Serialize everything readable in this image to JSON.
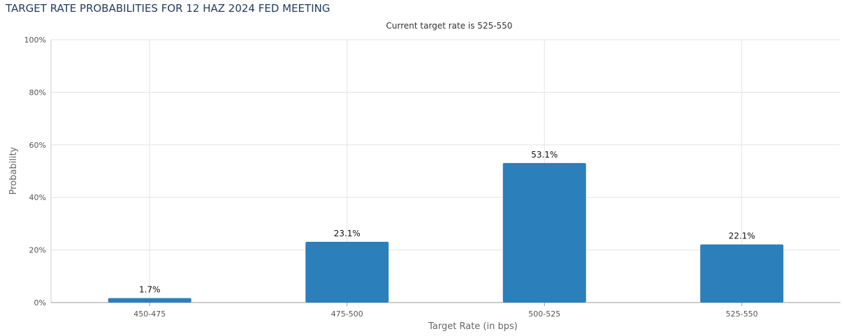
{
  "title": "TARGET RATE PROBABILITIES FOR 12 HAZ 2024 FED MEETING",
  "chart_data": {
    "type": "bar",
    "title": "TARGET RATE PROBABILITIES FOR 12 HAZ 2024 FED MEETING",
    "subtitle": "Current target rate is 525-550",
    "xlabel": "Target Rate (in bps)",
    "ylabel": "Probability",
    "categories": [
      "450-475",
      "475-500",
      "500-525",
      "525-550"
    ],
    "values": [
      1.7,
      23.1,
      53.1,
      22.1
    ],
    "data_labels": [
      "1.7%",
      "23.1%",
      "53.1%",
      "22.1%"
    ],
    "ylim": [
      0,
      100
    ],
    "yticks": [
      0,
      20,
      40,
      60,
      80,
      100
    ],
    "ytick_labels": [
      "0%",
      "20%",
      "40%",
      "60%",
      "80%",
      "100%"
    ],
    "grid": true,
    "bar_color": "#2b7fba",
    "grid_color": "#e3e3e3"
  }
}
